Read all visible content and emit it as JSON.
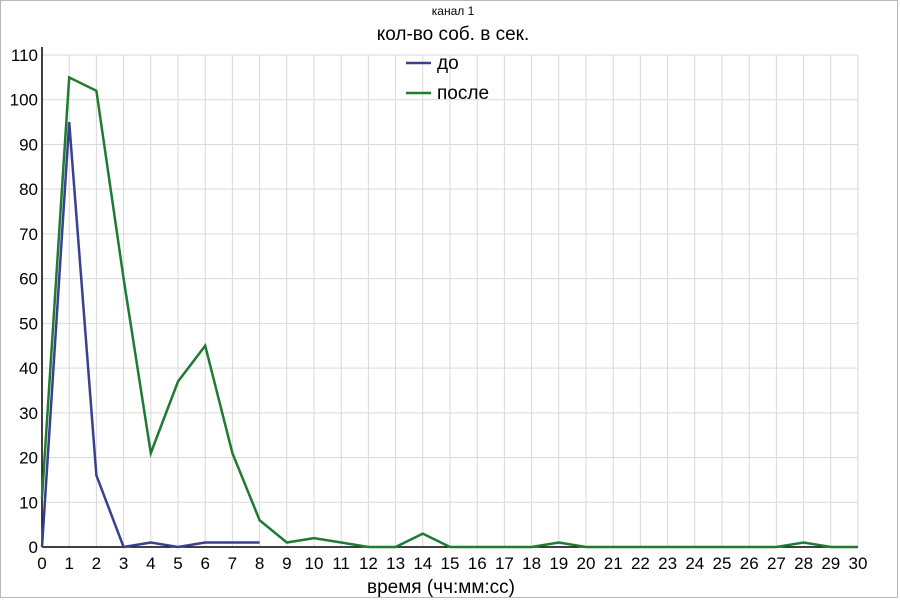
{
  "chart_data": {
    "type": "line",
    "title": "канал 1",
    "subtitle": "кол-во соб. в сек.",
    "xlabel": "время (чч:мм:сс)",
    "ylabel": "",
    "xlim": [
      0,
      30
    ],
    "ylim": [
      0,
      110
    ],
    "x_ticks": [
      0,
      1,
      2,
      3,
      4,
      5,
      6,
      7,
      8,
      9,
      10,
      11,
      12,
      13,
      14,
      15,
      16,
      17,
      18,
      19,
      20,
      21,
      22,
      23,
      24,
      25,
      26,
      27,
      28,
      29,
      30
    ],
    "y_ticks": [
      0,
      10,
      20,
      30,
      40,
      50,
      60,
      70,
      80,
      90,
      100,
      110
    ],
    "grid": true,
    "legend_position": "top-center",
    "series": [
      {
        "name": "до",
        "color": "#3a3f8f",
        "x": [
          0,
          1,
          2,
          3,
          4,
          5,
          6,
          7,
          8
        ],
        "y": [
          0,
          95,
          16,
          0,
          1,
          0,
          1,
          1,
          1
        ]
      },
      {
        "name": "после",
        "color": "#1f7a33",
        "x": [
          0,
          1,
          2,
          3,
          4,
          5,
          6,
          7,
          8,
          9,
          10,
          11,
          12,
          13,
          14,
          15,
          16,
          17,
          18,
          19,
          20,
          21,
          22,
          23,
          24,
          25,
          26,
          27,
          28,
          29,
          30
        ],
        "y": [
          11,
          105,
          102,
          60,
          21,
          37,
          45,
          21,
          6,
          1,
          2,
          1,
          0,
          0,
          3,
          0,
          0,
          0,
          0,
          1,
          0,
          0,
          0,
          0,
          0,
          0,
          0,
          0,
          1,
          0,
          0
        ]
      }
    ]
  }
}
